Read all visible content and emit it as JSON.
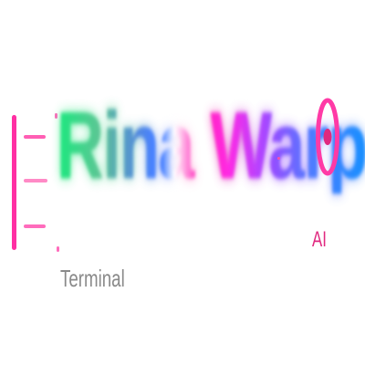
{
  "logo": {
    "title": "Rina Warp",
    "subtitle": "Terminal",
    "ai_label": "AI"
  },
  "icons": {
    "left_mark": "list-lines-icon",
    "target": "target-icon"
  },
  "colors": {
    "accent_pink": "#ff2fa3",
    "green": "#3ddc8a",
    "blue": "#2f8cff",
    "purple": "#8a55e6",
    "subtitle_gray": "#8a8a8a",
    "ai_pink": "#e0287f",
    "background": "#ffffff"
  }
}
